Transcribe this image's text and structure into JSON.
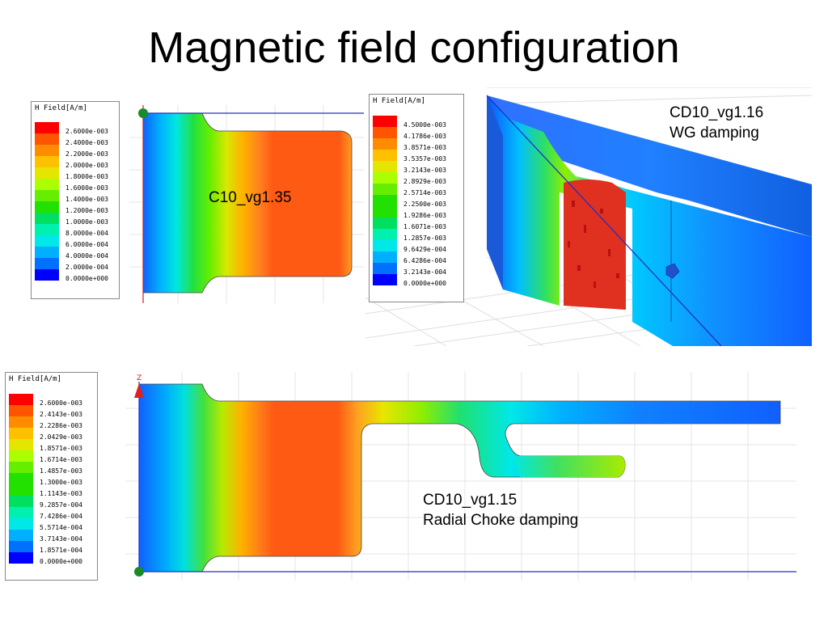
{
  "slide": {
    "title": "Magnetic field configuration"
  },
  "legend_colors": [
    "#ff0000",
    "#ff5500",
    "#ff8c00",
    "#ffc000",
    "#e5e600",
    "#aaff00",
    "#66ee00",
    "#22e000",
    "#00e060",
    "#00f0b0",
    "#00e8e8",
    "#00b0ff",
    "#0070ff",
    "#0000ff"
  ],
  "panels": [
    {
      "id": "c10",
      "caption": [
        "C10_vg1.35"
      ],
      "legend": {
        "title": "H Field[A/m]",
        "values": [
          "2.6000e-003",
          "2.4000e-003",
          "2.2000e-003",
          "2.0000e-003",
          "1.8000e-003",
          "1.6000e-003",
          "1.4000e-003",
          "1.2000e-003",
          "1.0000e-003",
          "8.0000e-004",
          "6.0000e-004",
          "4.0000e-004",
          "2.0000e-004",
          "0.0000e+000"
        ]
      }
    },
    {
      "id": "cd10_116",
      "caption": [
        "CD10_vg1.16",
        "WG damping"
      ],
      "legend": {
        "title": "H Field[A/m]",
        "values": [
          "4.5000e-003",
          "4.1786e-003",
          "3.8571e-003",
          "3.5357e-003",
          "3.2143e-003",
          "2.8929e-003",
          "2.5714e-003",
          "2.2500e-003",
          "1.9286e-003",
          "1.6071e-003",
          "1.2857e-003",
          "9.6429e-004",
          "6.4286e-004",
          "3.2143e-004",
          "0.0000e+000"
        ]
      }
    },
    {
      "id": "cd10_115",
      "caption": [
        "CD10_vg1.15",
        "Radial Choke damping"
      ],
      "axis_label": "Z",
      "legend": {
        "title": "H Field[A/m]",
        "values": [
          "2.6000e-003",
          "2.4143e-003",
          "2.2286e-003",
          "2.0429e-003",
          "1.8571e-003",
          "1.6714e-003",
          "1.4857e-003",
          "1.3000e-003",
          "1.1143e-003",
          "9.2857e-004",
          "7.4286e-004",
          "5.5714e-004",
          "3.7143e-004",
          "1.8571e-004",
          "0.0000e+000"
        ]
      }
    }
  ]
}
